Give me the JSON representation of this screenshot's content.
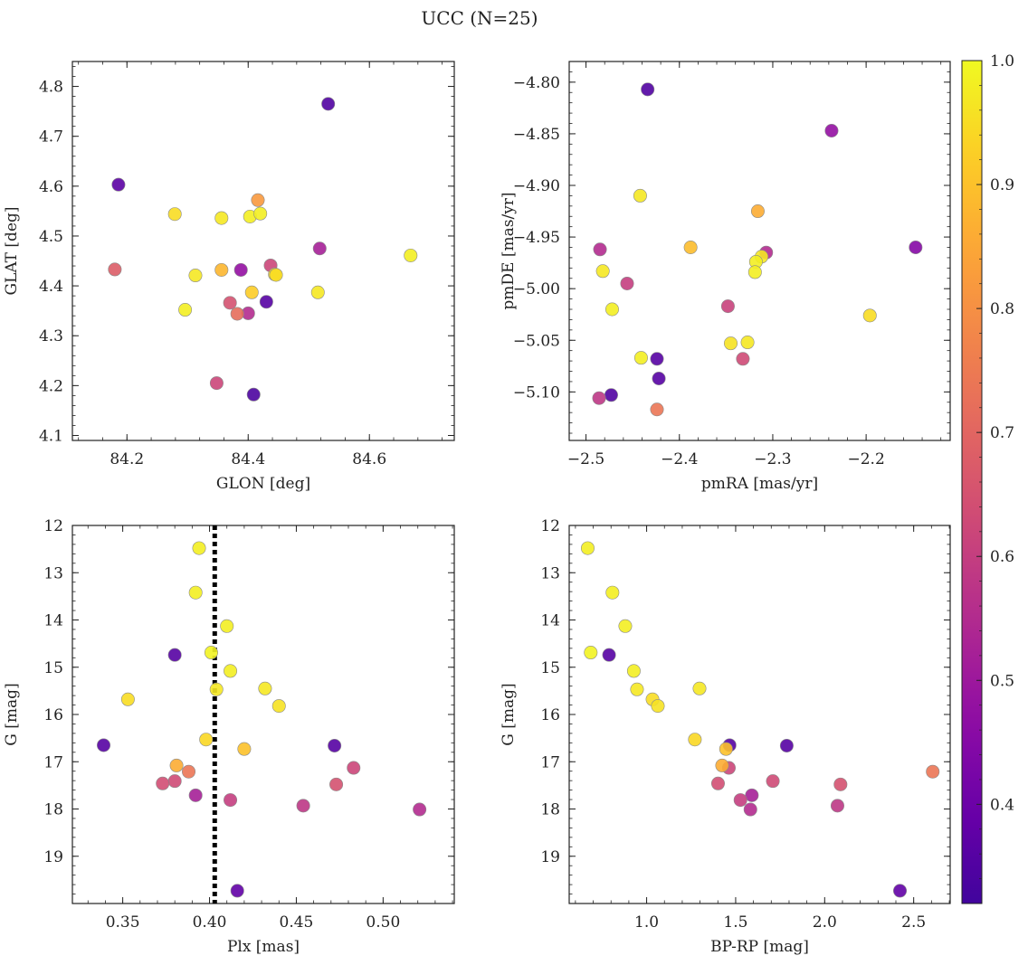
{
  "figure": {
    "title": "UCC (N=25)"
  },
  "colorbar": {
    "min": 0.32,
    "max": 1.0,
    "ticks": [
      0.4,
      0.5,
      0.6,
      0.7,
      0.8,
      0.9,
      1.0
    ],
    "tick_labels": [
      "0.4",
      "0.5",
      "0.6",
      "0.7",
      "0.8",
      "0.9",
      "1.0"
    ],
    "colormap": "plasma"
  },
  "chart_data": [
    {
      "type": "scatter",
      "xlabel": "GLON [deg]",
      "ylabel": "GLAT [deg]",
      "xlim": [
        84.11,
        84.74
      ],
      "ylim": [
        4.09,
        4.85
      ],
      "x_ticks": [
        84.2,
        84.4,
        84.6
      ],
      "x_tick_labels": [
        "84.2",
        "84.4",
        "84.6"
      ],
      "y_ticks": [
        4.1,
        4.2,
        4.3,
        4.4,
        4.5,
        4.6,
        4.7,
        4.8
      ],
      "y_tick_labels": [
        "4.1",
        "4.2",
        "4.3",
        "4.4",
        "4.5",
        "4.6",
        "4.7",
        "4.8"
      ],
      "points": [
        {
          "x": 84.532,
          "y": 4.765,
          "c": 0.35
        },
        {
          "x": 84.186,
          "y": 4.603,
          "c": 0.37
        },
        {
          "x": 84.279,
          "y": 4.544,
          "c": 0.95
        },
        {
          "x": 84.356,
          "y": 4.536,
          "c": 0.97
        },
        {
          "x": 84.403,
          "y": 4.539,
          "c": 0.98
        },
        {
          "x": 84.42,
          "y": 4.545,
          "c": 0.98
        },
        {
          "x": 84.416,
          "y": 4.572,
          "c": 0.82
        },
        {
          "x": 84.518,
          "y": 4.475,
          "c": 0.52
        },
        {
          "x": 84.18,
          "y": 4.433,
          "c": 0.68
        },
        {
          "x": 84.313,
          "y": 4.421,
          "c": 0.97
        },
        {
          "x": 84.356,
          "y": 4.432,
          "c": 0.88
        },
        {
          "x": 84.388,
          "y": 4.432,
          "c": 0.48
        },
        {
          "x": 84.437,
          "y": 4.441,
          "c": 0.62
        },
        {
          "x": 84.444,
          "y": 4.423,
          "c": 0.94
        },
        {
          "x": 84.446,
          "y": 4.422,
          "c": 0.95
        },
        {
          "x": 84.668,
          "y": 4.461,
          "c": 0.98
        },
        {
          "x": 84.406,
          "y": 4.387,
          "c": 0.92
        },
        {
          "x": 84.515,
          "y": 4.387,
          "c": 0.97
        },
        {
          "x": 84.37,
          "y": 4.366,
          "c": 0.65
        },
        {
          "x": 84.43,
          "y": 4.368,
          "c": 0.36
        },
        {
          "x": 84.296,
          "y": 4.352,
          "c": 0.98
        },
        {
          "x": 84.382,
          "y": 4.344,
          "c": 0.72
        },
        {
          "x": 84.4,
          "y": 4.345,
          "c": 0.55
        },
        {
          "x": 84.348,
          "y": 4.205,
          "c": 0.62
        },
        {
          "x": 84.409,
          "y": 4.182,
          "c": 0.34
        }
      ]
    },
    {
      "type": "scatter",
      "xlabel": "pmRA [mas/yr]",
      "ylabel": "pmDE [mas/yr]",
      "xlim": [
        -2.518,
        -2.11
      ],
      "ylim": [
        -5.147,
        -4.78
      ],
      "x_ticks": [
        -2.5,
        -2.4,
        -2.3,
        -2.2
      ],
      "x_tick_labels": [
        "−2.5",
        "−2.4",
        "−2.3",
        "−2.2"
      ],
      "y_ticks": [
        -4.8,
        -4.85,
        -4.9,
        -4.95,
        -5.0,
        -5.05,
        -5.1
      ],
      "y_tick_labels": [
        "−4.80",
        "−4.85",
        "−4.90",
        "−4.95",
        "−5.00",
        "−5.05",
        "−5.10"
      ],
      "points": [
        {
          "x": -2.434,
          "y": -4.807,
          "c": 0.35
        },
        {
          "x": -2.237,
          "y": -4.847,
          "c": 0.48
        },
        {
          "x": -2.442,
          "y": -4.91,
          "c": 0.97
        },
        {
          "x": -2.316,
          "y": -4.925,
          "c": 0.86
        },
        {
          "x": -2.485,
          "y": -4.962,
          "c": 0.55
        },
        {
          "x": -2.388,
          "y": -4.96,
          "c": 0.89
        },
        {
          "x": -2.307,
          "y": -4.965,
          "c": 0.55
        },
        {
          "x": -2.312,
          "y": -4.969,
          "c": 0.97
        },
        {
          "x": -2.318,
          "y": -4.974,
          "c": 0.98
        },
        {
          "x": -2.482,
          "y": -4.983,
          "c": 0.97
        },
        {
          "x": -2.319,
          "y": -4.984,
          "c": 0.98
        },
        {
          "x": -2.147,
          "y": -4.96,
          "c": 0.45
        },
        {
          "x": -2.456,
          "y": -4.995,
          "c": 0.6
        },
        {
          "x": -2.472,
          "y": -5.02,
          "c": 0.98
        },
        {
          "x": -2.348,
          "y": -5.017,
          "c": 0.61
        },
        {
          "x": -2.196,
          "y": -5.026,
          "c": 0.95
        },
        {
          "x": -2.345,
          "y": -5.053,
          "c": 0.96
        },
        {
          "x": -2.327,
          "y": -5.052,
          "c": 0.97
        },
        {
          "x": -2.441,
          "y": -5.067,
          "c": 0.98
        },
        {
          "x": -2.424,
          "y": -5.068,
          "c": 0.36
        },
        {
          "x": -2.332,
          "y": -5.068,
          "c": 0.63
        },
        {
          "x": -2.422,
          "y": -5.087,
          "c": 0.36
        },
        {
          "x": -2.486,
          "y": -5.106,
          "c": 0.58
        },
        {
          "x": -2.473,
          "y": -5.103,
          "c": 0.35
        },
        {
          "x": -2.424,
          "y": -5.117,
          "c": 0.74
        }
      ]
    },
    {
      "type": "scatter",
      "xlabel": "Plx [mas]",
      "ylabel": "G [mag]",
      "xlim": [
        0.321,
        0.541
      ],
      "ylim": [
        20.0,
        12.0
      ],
      "y_inverted": true,
      "x_ticks": [
        0.35,
        0.4,
        0.45,
        0.5
      ],
      "x_tick_labels": [
        "0.35",
        "0.40",
        "0.45",
        "0.50"
      ],
      "y_ticks": [
        12,
        13,
        14,
        15,
        16,
        17,
        18,
        19
      ],
      "y_tick_labels": [
        "12",
        "13",
        "14",
        "15",
        "16",
        "17",
        "18",
        "19"
      ],
      "vline": {
        "x": 0.403
      },
      "points": [
        {
          "x": 0.394,
          "y": 12.48,
          "c": 0.98
        },
        {
          "x": 0.392,
          "y": 13.42,
          "c": 0.98
        },
        {
          "x": 0.41,
          "y": 14.13,
          "c": 0.98
        },
        {
          "x": 0.38,
          "y": 14.74,
          "c": 0.36
        },
        {
          "x": 0.401,
          "y": 14.69,
          "c": 0.99
        },
        {
          "x": 0.412,
          "y": 15.08,
          "c": 0.98
        },
        {
          "x": 0.404,
          "y": 15.47,
          "c": 0.97
        },
        {
          "x": 0.432,
          "y": 15.45,
          "c": 0.97
        },
        {
          "x": 0.353,
          "y": 15.68,
          "c": 0.95
        },
        {
          "x": 0.44,
          "y": 15.82,
          "c": 0.96
        },
        {
          "x": 0.398,
          "y": 16.53,
          "c": 0.94
        },
        {
          "x": 0.339,
          "y": 16.65,
          "c": 0.36
        },
        {
          "x": 0.42,
          "y": 16.73,
          "c": 0.9
        },
        {
          "x": 0.472,
          "y": 16.66,
          "c": 0.36
        },
        {
          "x": 0.381,
          "y": 17.08,
          "c": 0.86
        },
        {
          "x": 0.483,
          "y": 17.13,
          "c": 0.62
        },
        {
          "x": 0.388,
          "y": 17.21,
          "c": 0.74
        },
        {
          "x": 0.373,
          "y": 17.46,
          "c": 0.64
        },
        {
          "x": 0.38,
          "y": 17.41,
          "c": 0.63
        },
        {
          "x": 0.473,
          "y": 17.48,
          "c": 0.65
        },
        {
          "x": 0.392,
          "y": 17.71,
          "c": 0.52
        },
        {
          "x": 0.412,
          "y": 17.81,
          "c": 0.6
        },
        {
          "x": 0.454,
          "y": 17.93,
          "c": 0.58
        },
        {
          "x": 0.521,
          "y": 18.01,
          "c": 0.55
        },
        {
          "x": 0.416,
          "y": 19.73,
          "c": 0.38
        }
      ]
    },
    {
      "type": "scatter",
      "xlabel": "BP-RP [mag]",
      "ylabel": "G [mag]",
      "xlim": [
        0.565,
        2.705
      ],
      "ylim": [
        20.0,
        12.0
      ],
      "y_inverted": true,
      "x_ticks": [
        1.0,
        1.5,
        2.0,
        2.5
      ],
      "x_tick_labels": [
        "1.0",
        "1.5",
        "2.0",
        "2.5"
      ],
      "y_ticks": [
        12,
        13,
        14,
        15,
        16,
        17,
        18,
        19
      ],
      "y_tick_labels": [
        "12",
        "13",
        "14",
        "15",
        "16",
        "17",
        "18",
        "19"
      ],
      "points": [
        {
          "x": 0.669,
          "y": 12.48,
          "c": 0.98
        },
        {
          "x": 0.808,
          "y": 13.42,
          "c": 0.98
        },
        {
          "x": 0.88,
          "y": 14.13,
          "c": 0.98
        },
        {
          "x": 0.686,
          "y": 14.69,
          "c": 0.99
        },
        {
          "x": 0.789,
          "y": 14.74,
          "c": 0.36
        },
        {
          "x": 0.928,
          "y": 15.08,
          "c": 0.98
        },
        {
          "x": 0.946,
          "y": 15.47,
          "c": 0.97
        },
        {
          "x": 1.297,
          "y": 15.45,
          "c": 0.97
        },
        {
          "x": 1.033,
          "y": 15.68,
          "c": 0.95
        },
        {
          "x": 1.063,
          "y": 15.82,
          "c": 0.96
        },
        {
          "x": 1.271,
          "y": 16.53,
          "c": 0.94
        },
        {
          "x": 1.466,
          "y": 16.65,
          "c": 0.36
        },
        {
          "x": 1.446,
          "y": 16.73,
          "c": 0.9
        },
        {
          "x": 1.787,
          "y": 16.66,
          "c": 0.36
        },
        {
          "x": 1.424,
          "y": 17.08,
          "c": 0.86
        },
        {
          "x": 1.462,
          "y": 17.13,
          "c": 0.62
        },
        {
          "x": 2.607,
          "y": 17.21,
          "c": 0.74
        },
        {
          "x": 1.709,
          "y": 17.41,
          "c": 0.63
        },
        {
          "x": 1.401,
          "y": 17.46,
          "c": 0.64
        },
        {
          "x": 2.089,
          "y": 17.48,
          "c": 0.65
        },
        {
          "x": 1.591,
          "y": 17.71,
          "c": 0.52
        },
        {
          "x": 1.527,
          "y": 17.81,
          "c": 0.6
        },
        {
          "x": 2.072,
          "y": 17.93,
          "c": 0.58
        },
        {
          "x": 1.583,
          "y": 18.01,
          "c": 0.55
        },
        {
          "x": 2.423,
          "y": 19.73,
          "c": 0.38
        }
      ]
    }
  ]
}
